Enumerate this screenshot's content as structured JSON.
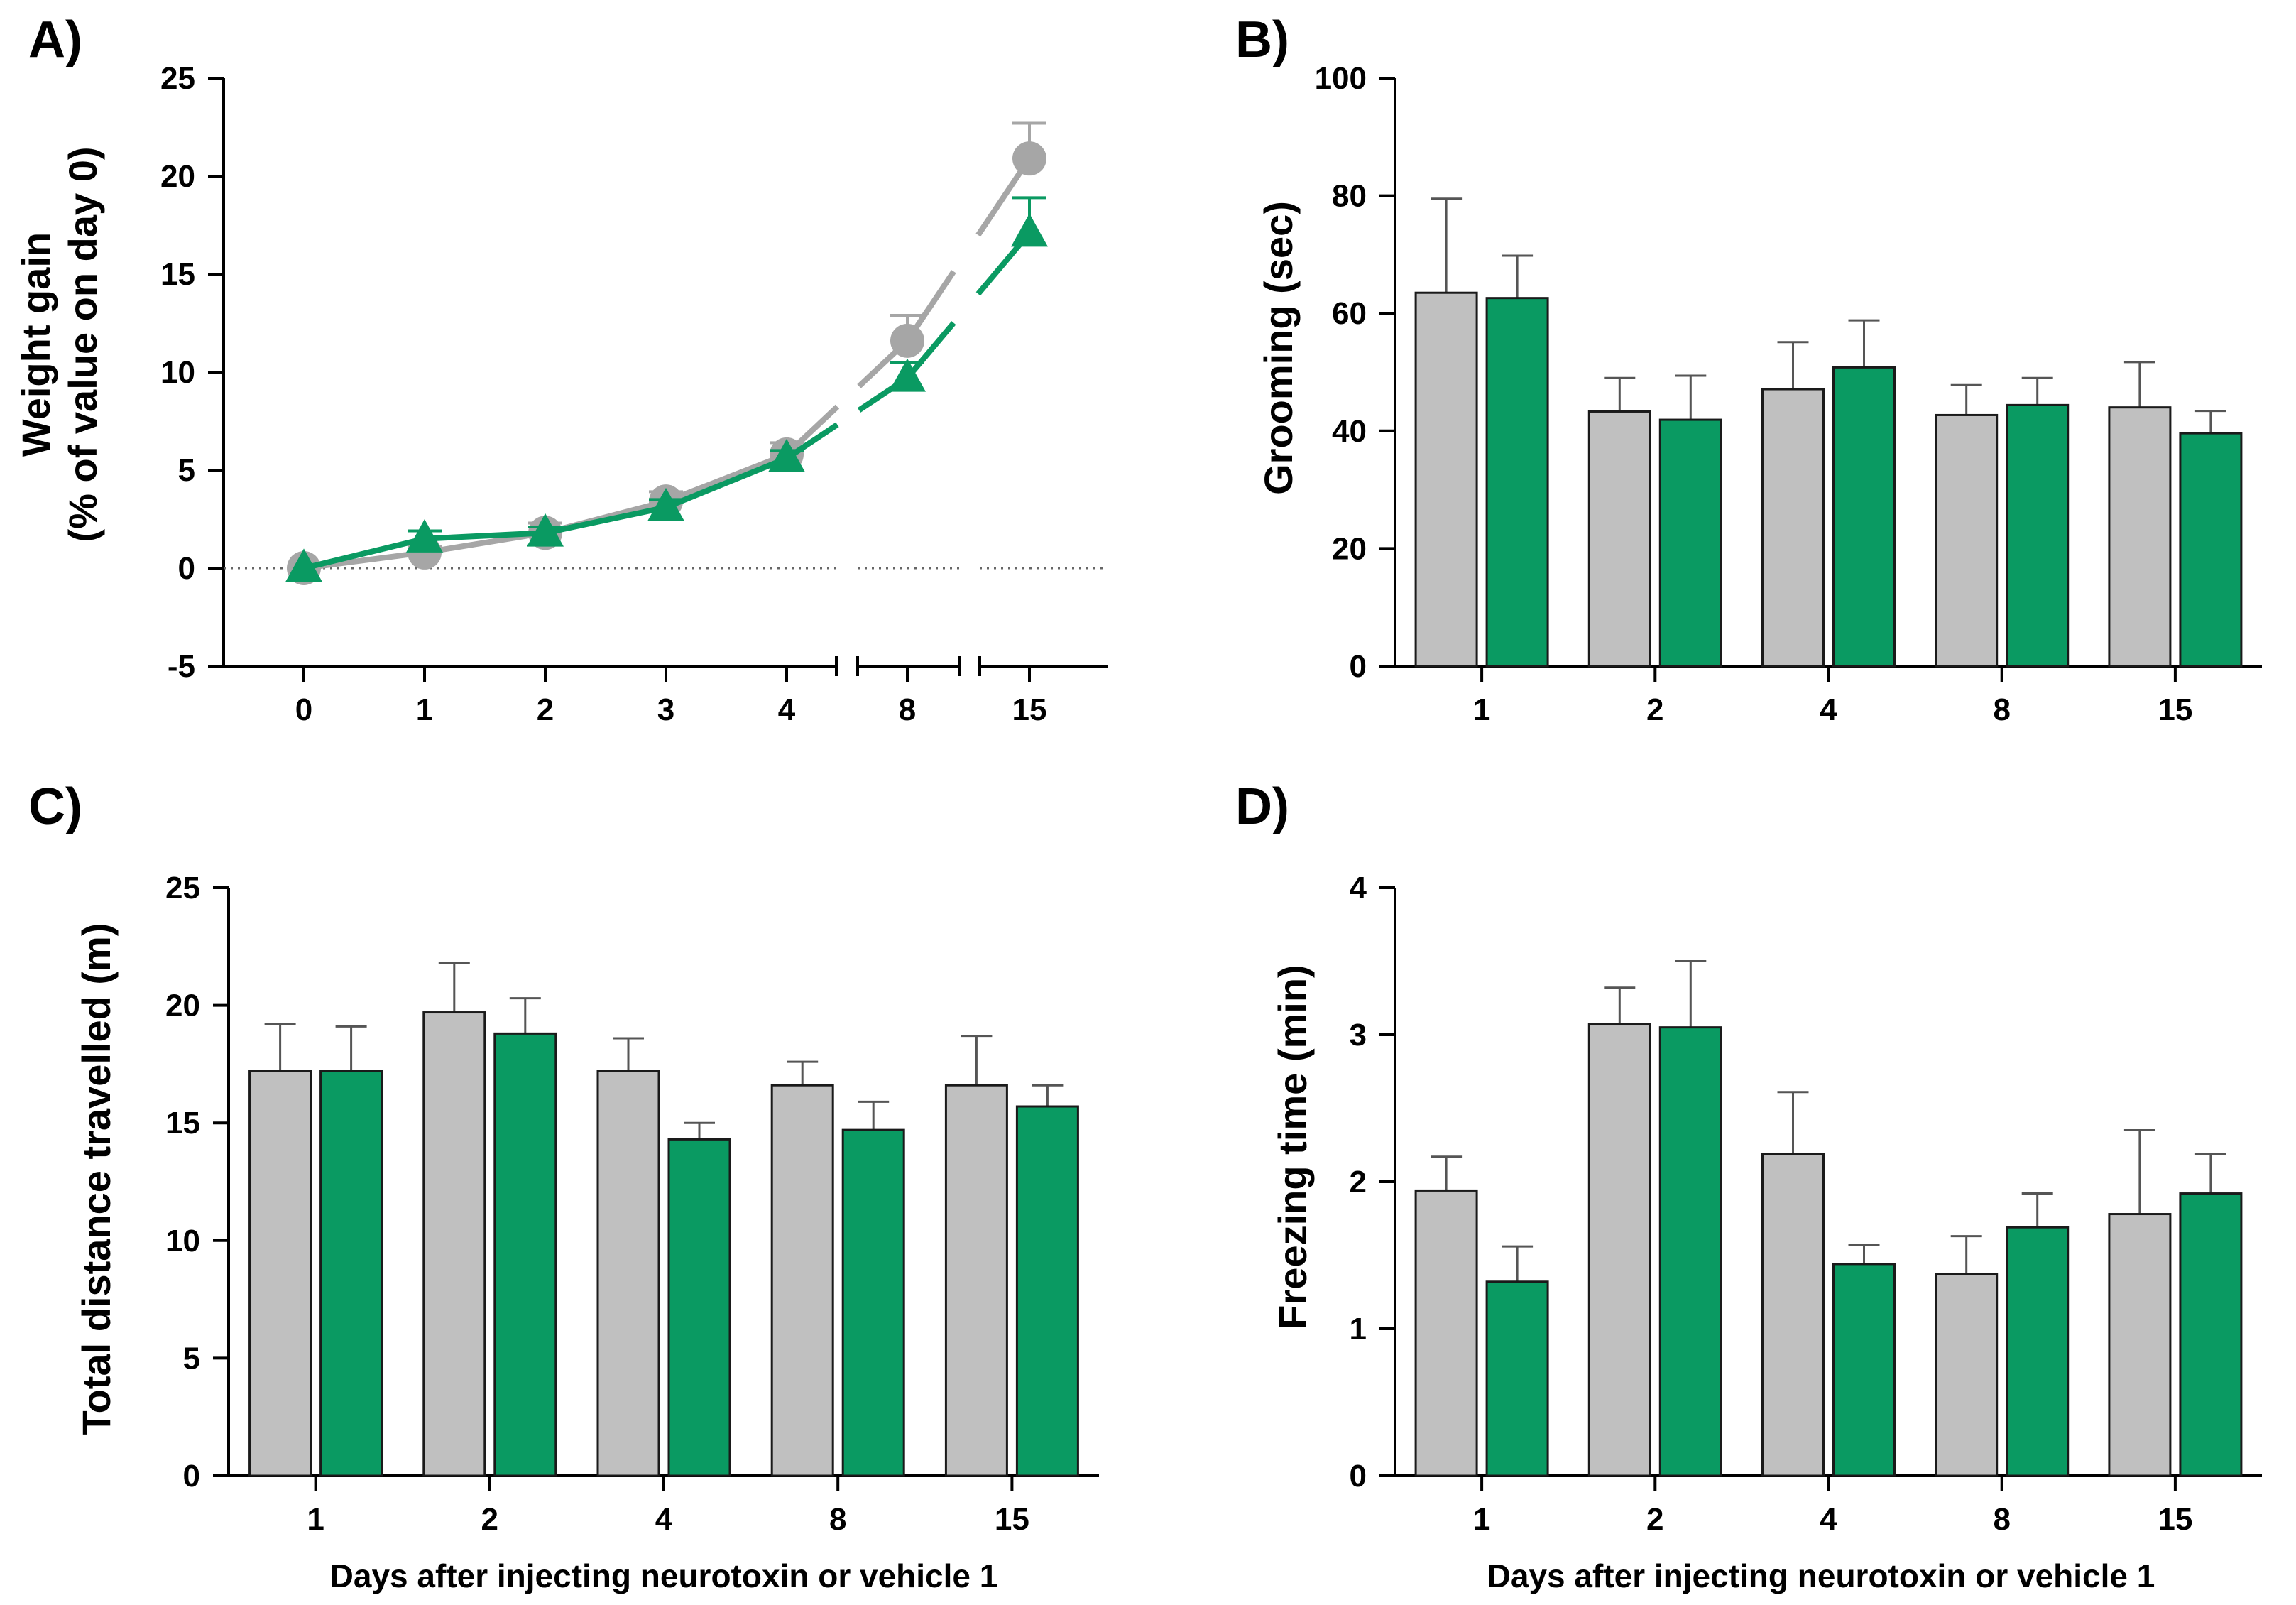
{
  "colors": {
    "vehicle": "#c0c0c0",
    "neurotoxin": "#0a9a62",
    "vehicle_line": "#a6a6a6",
    "bar_edge": "#1a1a1a",
    "axis": "#000000"
  },
  "chart_data": [
    {
      "panel": "A)",
      "type": "line",
      "ylabel_line1": "Weight gain",
      "ylabel_line2": "(% of value on day 0)",
      "xlabel": "",
      "ylim": [
        -5,
        25
      ],
      "yticks": [
        "-5",
        "0",
        "5",
        "10",
        "15",
        "20",
        "25"
      ],
      "categories": [
        "0",
        "1",
        "2",
        "3",
        "4",
        "8",
        "15"
      ],
      "reference_line": 0,
      "series": [
        {
          "name": "vehicle",
          "marker": "circle",
          "values": [
            0,
            0.8,
            1.8,
            3.4,
            5.8,
            11.6,
            20.9
          ],
          "errors": [
            0,
            0.3,
            0.5,
            0.5,
            0.6,
            1.3,
            1.8
          ]
        },
        {
          "name": "neurotoxin",
          "marker": "triangle",
          "values": [
            0,
            1.5,
            1.8,
            3.1,
            5.6,
            9.7,
            17.1
          ],
          "errors": [
            0,
            0.4,
            0.3,
            0.4,
            0.4,
            0.8,
            1.8
          ]
        }
      ]
    },
    {
      "panel": "B)",
      "type": "bar",
      "ylabel": "Grooming (sec)",
      "xlabel": "",
      "ylim": [
        0,
        100
      ],
      "yticks": [
        "0",
        "20",
        "40",
        "60",
        "80",
        "100"
      ],
      "categories": [
        "1",
        "2",
        "4",
        "8",
        "15"
      ],
      "series": [
        {
          "name": "vehicle",
          "values": [
            63.5,
            43.3,
            47.1,
            42.7,
            44.0
          ],
          "errors": [
            16.0,
            5.7,
            8.0,
            5.1,
            7.7
          ]
        },
        {
          "name": "neurotoxin",
          "values": [
            62.6,
            41.9,
            50.8,
            44.4,
            39.6
          ],
          "errors": [
            7.2,
            7.5,
            8.0,
            4.6,
            3.8
          ]
        }
      ]
    },
    {
      "panel": "C)",
      "type": "bar",
      "ylabel": "Total distance travelled (m)",
      "xlabel": "Days after injecting neurotoxin or vehicle 1",
      "ylim": [
        0,
        25
      ],
      "yticks": [
        "0",
        "5",
        "10",
        "15",
        "20",
        "25"
      ],
      "categories": [
        "1",
        "2",
        "4",
        "8",
        "15"
      ],
      "series": [
        {
          "name": "vehicle",
          "values": [
            17.2,
            19.7,
            17.2,
            16.6,
            16.6
          ],
          "errors": [
            2.0,
            2.1,
            1.4,
            1.0,
            2.1
          ]
        },
        {
          "name": "neurotoxin",
          "values": [
            17.2,
            18.8,
            14.3,
            14.7,
            15.7
          ],
          "errors": [
            1.9,
            1.5,
            0.7,
            1.2,
            0.9
          ]
        }
      ]
    },
    {
      "panel": "D)",
      "type": "bar",
      "ylabel": "Freezing time (min)",
      "xlabel": "Days after injecting neurotoxin or vehicle 1",
      "ylim": [
        0,
        4
      ],
      "yticks": [
        "0",
        "1",
        "2",
        "3",
        "4"
      ],
      "categories": [
        "1",
        "2",
        "4",
        "8",
        "15"
      ],
      "series": [
        {
          "name": "vehicle",
          "values": [
            1.94,
            3.07,
            2.19,
            1.37,
            1.78
          ],
          "errors": [
            0.23,
            0.25,
            0.42,
            0.26,
            0.57
          ]
        },
        {
          "name": "neurotoxin",
          "values": [
            1.32,
            3.05,
            1.44,
            1.69,
            1.92
          ],
          "errors": [
            0.24,
            0.45,
            0.13,
            0.23,
            0.27
          ]
        }
      ]
    }
  ]
}
